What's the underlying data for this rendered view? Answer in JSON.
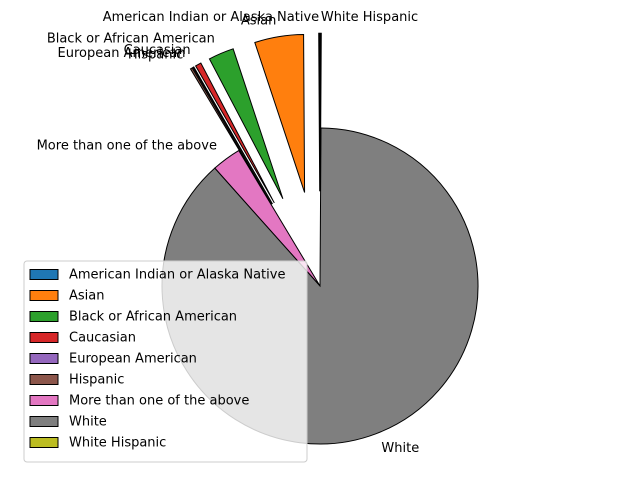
{
  "chart_data": {
    "type": "pie",
    "title": "",
    "start_angle": 90,
    "direction": "counterclockwise",
    "slices": [
      {
        "label": "American Indian or Alaska Native",
        "value": 0.1,
        "color": "#1f77b4",
        "exploded": true
      },
      {
        "label": "Asian",
        "value": 5.0,
        "color": "#ff7f0e",
        "exploded": true
      },
      {
        "label": "Black or African American",
        "value": 2.6,
        "color": "#2ca02c",
        "exploded": true
      },
      {
        "label": "Caucasian",
        "value": 0.6,
        "color": "#d62728",
        "exploded": true
      },
      {
        "label": "European American",
        "value": 0.1,
        "color": "#9467bd",
        "exploded": true
      },
      {
        "label": "Hispanic",
        "value": 0.2,
        "color": "#8c564b",
        "exploded": true
      },
      {
        "label": "More than one of the above",
        "value": 3.0,
        "color": "#e377c2",
        "exploded": false
      },
      {
        "label": "White",
        "value": 88.3,
        "color": "#7f7f7f",
        "exploded": false
      },
      {
        "label": "White Hispanic",
        "value": 0.1,
        "color": "#bcbd22",
        "exploded": true
      }
    ],
    "legend": {
      "placement": "lower-left",
      "entries": [
        "American Indian or Alaska Native",
        "Asian",
        "Black or African American",
        "Caucasian",
        "European American",
        "Hispanic",
        "More than one of the above",
        "White",
        "White Hispanic"
      ]
    }
  }
}
